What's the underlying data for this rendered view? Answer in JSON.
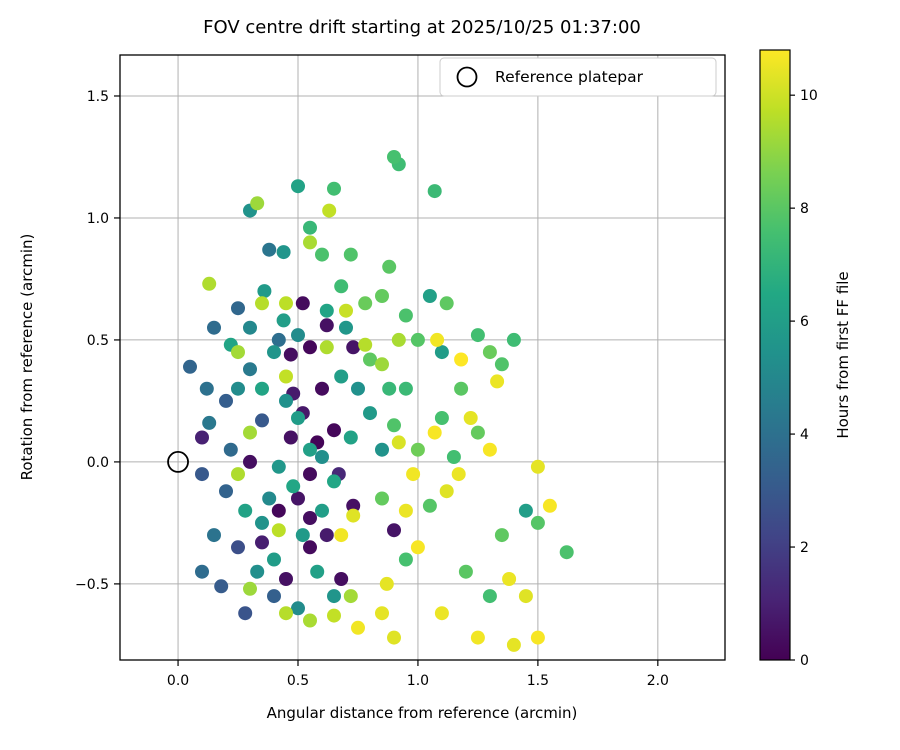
{
  "chart_data": {
    "type": "scatter",
    "title": "FOV centre drift starting at 2025/10/25 01:37:00",
    "xlabel": "Angular distance from reference (arcmin)",
    "ylabel": "Rotation from reference (arcmin)",
    "colorbar_label": "Hours from first FF file",
    "grid": true,
    "xlim": [
      -0.242,
      2.28
    ],
    "ylim": [
      -0.812,
      1.668
    ],
    "xticks": [
      0.0,
      0.5,
      1.0,
      1.5,
      2.0
    ],
    "xtick_labels": [
      "0.0",
      "0.5",
      "1.0",
      "1.5",
      "2.0"
    ],
    "yticks": [
      -0.5,
      0.0,
      0.5,
      1.0,
      1.5
    ],
    "ytick_labels": [
      "−0.5",
      "0.0",
      "0.5",
      "1.0",
      "1.5"
    ],
    "vmin": 0,
    "vmax": 10.8,
    "colorbar_ticks": [
      0,
      2,
      4,
      6,
      8,
      10
    ],
    "colorbar_tick_labels": [
      "0",
      "2",
      "4",
      "6",
      "8",
      "10"
    ],
    "legend": {
      "position": "upper right",
      "entries": [
        {
          "label": "Reference platepar",
          "marker": "open-circle"
        }
      ]
    },
    "reference_point": {
      "x": 0.0,
      "y": 0.0
    },
    "colormap": {
      "name": "viridis",
      "stops": [
        [
          0.0,
          "#440154"
        ],
        [
          0.1,
          "#482475"
        ],
        [
          0.2,
          "#414487"
        ],
        [
          0.3,
          "#355f8d"
        ],
        [
          0.4,
          "#2a788e"
        ],
        [
          0.5,
          "#21918c"
        ],
        [
          0.6,
          "#22a884"
        ],
        [
          0.7,
          "#44bf70"
        ],
        [
          0.8,
          "#7ad151"
        ],
        [
          0.9,
          "#bddf26"
        ],
        [
          1.0,
          "#fde725"
        ]
      ]
    },
    "points": [
      [
        0.52,
        0.65,
        0.3
      ],
      [
        0.62,
        0.56,
        0.5
      ],
      [
        0.55,
        0.47,
        0.2
      ],
      [
        0.73,
        0.47,
        0.6
      ],
      [
        0.47,
        0.44,
        0.4
      ],
      [
        0.6,
        0.3,
        0.3
      ],
      [
        0.52,
        0.2,
        0.7
      ],
      [
        0.65,
        0.13,
        0.2
      ],
      [
        0.47,
        0.1,
        0.5
      ],
      [
        0.3,
        0.0,
        0.4
      ],
      [
        0.1,
        0.1,
        1.0
      ],
      [
        0.55,
        -0.05,
        0.3
      ],
      [
        0.5,
        -0.15,
        0.6
      ],
      [
        0.42,
        -0.2,
        0.2
      ],
      [
        0.55,
        -0.23,
        0.4
      ],
      [
        0.73,
        -0.18,
        0.5
      ],
      [
        0.62,
        -0.3,
        0.8
      ],
      [
        0.9,
        -0.28,
        0.6
      ],
      [
        0.55,
        -0.35,
        0.3
      ],
      [
        0.45,
        -0.48,
        0.5
      ],
      [
        0.68,
        -0.48,
        0.4
      ],
      [
        0.35,
        -0.33,
        0.9
      ],
      [
        0.58,
        0.08,
        0.1
      ],
      [
        0.48,
        0.28,
        0.8
      ],
      [
        0.67,
        -0.05,
        1.2
      ],
      [
        0.05,
        0.39,
        3.5
      ],
      [
        0.15,
        0.55,
        3.8
      ],
      [
        0.12,
        0.3,
        4.0
      ],
      [
        0.2,
        0.25,
        3.2
      ],
      [
        0.25,
        0.63,
        3.6
      ],
      [
        0.38,
        0.87,
        4.2
      ],
      [
        0.1,
        -0.05,
        3.0
      ],
      [
        0.2,
        -0.12,
        3.4
      ],
      [
        0.1,
        -0.45,
        3.8
      ],
      [
        0.18,
        -0.51,
        3.1
      ],
      [
        0.28,
        -0.62,
        2.8
      ],
      [
        0.4,
        -0.55,
        3.3
      ],
      [
        0.15,
        -0.3,
        4.1
      ],
      [
        0.22,
        0.05,
        3.7
      ],
      [
        0.3,
        0.38,
        4.4
      ],
      [
        0.42,
        0.5,
        3.9
      ],
      [
        0.35,
        0.17,
        3.0
      ],
      [
        0.13,
        0.16,
        4.3
      ],
      [
        0.25,
        -0.35,
        2.6
      ],
      [
        0.3,
        1.03,
        5.5
      ],
      [
        0.5,
        1.13,
        6.2
      ],
      [
        0.36,
        0.7,
        5.8
      ],
      [
        0.44,
        0.58,
        6.0
      ],
      [
        0.5,
        0.52,
        5.2
      ],
      [
        0.4,
        0.45,
        5.6
      ],
      [
        0.35,
        0.3,
        6.3
      ],
      [
        0.45,
        0.25,
        5.4
      ],
      [
        0.5,
        0.18,
        5.9
      ],
      [
        0.55,
        0.05,
        6.1
      ],
      [
        0.6,
        0.02,
        5.3
      ],
      [
        0.42,
        -0.02,
        5.7
      ],
      [
        0.48,
        -0.1,
        6.4
      ],
      [
        0.38,
        -0.15,
        5.1
      ],
      [
        0.52,
        -0.3,
        5.8
      ],
      [
        0.6,
        -0.2,
        6.0
      ],
      [
        0.35,
        -0.25,
        5.5
      ],
      [
        0.28,
        -0.2,
        6.2
      ],
      [
        0.33,
        -0.45,
        5.3
      ],
      [
        0.4,
        -0.4,
        5.9
      ],
      [
        0.58,
        -0.45,
        6.1
      ],
      [
        0.65,
        -0.55,
        5.6
      ],
      [
        0.5,
        -0.6,
        5.2
      ],
      [
        0.62,
        0.62,
        6.3
      ],
      [
        0.7,
        0.55,
        5.7
      ],
      [
        0.68,
        0.35,
        6.0
      ],
      [
        0.75,
        0.3,
        5.4
      ],
      [
        0.8,
        0.2,
        5.8
      ],
      [
        0.72,
        0.1,
        6.2
      ],
      [
        0.85,
        0.05,
        5.5
      ],
      [
        0.65,
        -0.08,
        6.4
      ],
      [
        1.45,
        -0.2,
        6.0
      ],
      [
        1.05,
        0.68,
        6.1
      ],
      [
        1.1,
        0.45,
        5.9
      ],
      [
        0.44,
        0.86,
        5.6
      ],
      [
        0.25,
        0.3,
        5.2
      ],
      [
        0.22,
        0.48,
        6.3
      ],
      [
        0.3,
        0.55,
        5.0
      ],
      [
        0.65,
        1.12,
        7.5
      ],
      [
        0.55,
        0.96,
        7.2
      ],
      [
        0.72,
        0.85,
        7.8
      ],
      [
        0.88,
        0.8,
        8.0
      ],
      [
        0.92,
        1.22,
        7.4
      ],
      [
        0.9,
        1.25,
        7.6
      ],
      [
        1.07,
        1.11,
        7.3
      ],
      [
        0.85,
        0.68,
        8.2
      ],
      [
        0.95,
        0.6,
        7.7
      ],
      [
        1.0,
        0.5,
        7.9
      ],
      [
        1.12,
        0.65,
        8.1
      ],
      [
        1.25,
        0.52,
        7.5
      ],
      [
        1.3,
        0.45,
        8.3
      ],
      [
        1.35,
        0.4,
        7.8
      ],
      [
        1.18,
        0.3,
        8.0
      ],
      [
        1.1,
        0.18,
        7.6
      ],
      [
        1.25,
        0.12,
        8.2
      ],
      [
        1.4,
        0.5,
        7.4
      ],
      [
        1.5,
        -0.25,
        7.9
      ],
      [
        1.35,
        -0.3,
        8.1
      ],
      [
        1.62,
        -0.37,
        7.7
      ],
      [
        1.3,
        -0.55,
        7.5
      ],
      [
        1.2,
        -0.45,
        8.0
      ],
      [
        0.95,
        0.3,
        7.3
      ],
      [
        0.9,
        0.15,
        7.8
      ],
      [
        0.85,
        -0.15,
        8.2
      ],
      [
        0.95,
        -0.4,
        7.6
      ],
      [
        1.05,
        -0.18,
        7.9
      ],
      [
        0.78,
        0.65,
        8.3
      ],
      [
        0.68,
        0.72,
        7.4
      ],
      [
        0.6,
        0.85,
        7.7
      ],
      [
        0.8,
        0.42,
        8.1
      ],
      [
        0.88,
        0.3,
        7.2
      ],
      [
        1.0,
        0.05,
        8.4
      ],
      [
        1.15,
        0.02,
        7.5
      ],
      [
        0.13,
        0.73,
        9.5
      ],
      [
        0.33,
        1.06,
        9.2
      ],
      [
        0.63,
        1.03,
        9.8
      ],
      [
        0.55,
        0.9,
        9.4
      ],
      [
        0.35,
        0.65,
        9.6
      ],
      [
        0.25,
        0.45,
        9.3
      ],
      [
        0.45,
        0.65,
        9.7
      ],
      [
        0.62,
        0.47,
        9.5
      ],
      [
        0.7,
        0.62,
        9.9
      ],
      [
        0.85,
        0.4,
        9.2
      ],
      [
        0.78,
        0.48,
        9.6
      ],
      [
        0.92,
        0.5,
        9.4
      ],
      [
        0.45,
        0.35,
        9.8
      ],
      [
        0.3,
        0.12,
        9.3
      ],
      [
        0.25,
        -0.05,
        9.5
      ],
      [
        0.42,
        -0.28,
        9.7
      ],
      [
        0.3,
        -0.52,
        9.2
      ],
      [
        0.45,
        -0.62,
        9.6
      ],
      [
        0.55,
        -0.65,
        9.4
      ],
      [
        0.65,
        -0.63,
        9.8
      ],
      [
        0.72,
        -0.55,
        9.3
      ],
      [
        1.08,
        0.5,
        10.6
      ],
      [
        1.22,
        0.18,
        10.4
      ],
      [
        1.3,
        0.05,
        10.7
      ],
      [
        1.17,
        -0.05,
        10.5
      ],
      [
        1.12,
        -0.12,
        10.3
      ],
      [
        0.98,
        -0.05,
        10.6
      ],
      [
        1.5,
        -0.02,
        10.4
      ],
      [
        1.55,
        -0.18,
        10.7
      ],
      [
        1.38,
        -0.48,
        10.5
      ],
      [
        1.45,
        -0.55,
        10.3
      ],
      [
        1.25,
        -0.72,
        10.6
      ],
      [
        1.4,
        -0.75,
        10.4
      ],
      [
        1.5,
        -0.72,
        10.7
      ],
      [
        1.1,
        -0.62,
        10.5
      ],
      [
        0.9,
        -0.72,
        10.3
      ],
      [
        0.75,
        -0.68,
        10.6
      ],
      [
        0.87,
        -0.5,
        10.4
      ],
      [
        1.0,
        -0.35,
        10.7
      ],
      [
        0.95,
        -0.2,
        10.5
      ],
      [
        0.73,
        -0.22,
        10.3
      ],
      [
        0.68,
        -0.3,
        10.6
      ],
      [
        0.85,
        -0.62,
        10.4
      ],
      [
        1.07,
        0.12,
        10.7
      ],
      [
        1.33,
        0.33,
        10.5
      ],
      [
        0.92,
        0.08,
        10.2
      ],
      [
        1.18,
        0.42,
        10.8
      ]
    ]
  }
}
